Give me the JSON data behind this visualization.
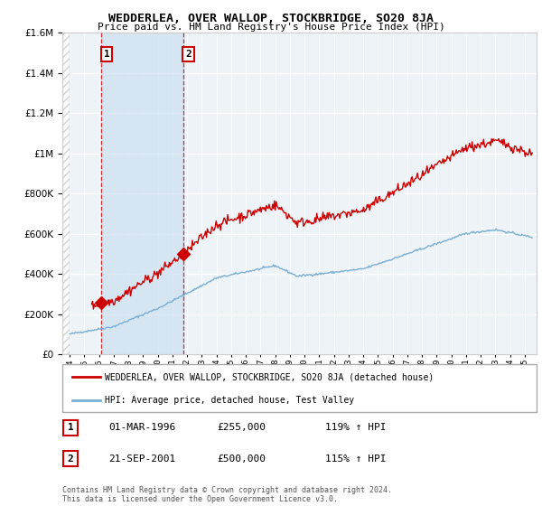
{
  "title": "WEDDERLEA, OVER WALLOP, STOCKBRIDGE, SO20 8JA",
  "subtitle": "Price paid vs. HM Land Registry's House Price Index (HPI)",
  "ylim": [
    0,
    1600000
  ],
  "yticks": [
    0,
    200000,
    400000,
    600000,
    800000,
    1000000,
    1200000,
    1400000,
    1600000
  ],
  "ytick_labels": [
    "£0",
    "£200K",
    "£400K",
    "£600K",
    "£800K",
    "£1M",
    "£1.2M",
    "£1.4M",
    "£1.6M"
  ],
  "xmin": 1993.5,
  "xmax": 2025.8,
  "red_line_color": "#cc0000",
  "blue_line_color": "#7bafd4",
  "background_color": "#ffffff",
  "plot_bg_color": "#eef3f8",
  "grid_color": "#ffffff",
  "legend_label_red": "WEDDERLEA, OVER WALLOP, STOCKBRIDGE, SO20 8JA (detached house)",
  "legend_label_blue": "HPI: Average price, detached house, Test Valley",
  "annotation1_date": "01-MAR-1996",
  "annotation1_price": "£255,000",
  "annotation1_hpi": "119% ↑ HPI",
  "annotation2_date": "21-SEP-2001",
  "annotation2_price": "£500,000",
  "annotation2_hpi": "115% ↑ HPI",
  "footer": "Contains HM Land Registry data © Crown copyright and database right 2024.\nThis data is licensed under the Open Government Licence v3.0.",
  "sale1_x": 1996.17,
  "sale1_y": 255000,
  "sale2_x": 2001.72,
  "sale2_y": 500000
}
